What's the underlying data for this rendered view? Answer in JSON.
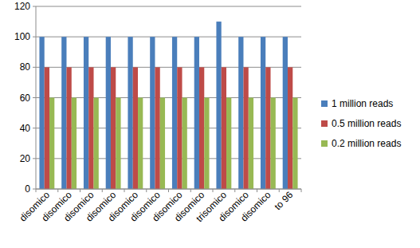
{
  "chart_data": {
    "type": "bar",
    "categories": [
      "disomico",
      "disomico",
      "disomico",
      "disomico",
      "disomico",
      "disomico",
      "disomico",
      "disomico",
      "trisomico",
      "disomico",
      "disomico",
      "to 96"
    ],
    "series": [
      {
        "name": "1 million reads",
        "color": "#4a7ebb",
        "values": [
          100,
          100,
          100,
          100,
          100,
          100,
          100,
          100,
          110,
          100,
          100,
          100
        ]
      },
      {
        "name": "0.5 million reads",
        "color": "#be4b48",
        "values": [
          80,
          80,
          80,
          80,
          80,
          80,
          80,
          80,
          80,
          80,
          80,
          80
        ]
      },
      {
        "name": "0.2 million reads",
        "color": "#98b954",
        "values": [
          60,
          60,
          60,
          60,
          60,
          60,
          60,
          60,
          60,
          60,
          60,
          60
        ]
      }
    ],
    "ylim": [
      0,
      120
    ],
    "yticks": [
      0,
      20,
      40,
      60,
      80,
      100,
      120
    ],
    "grid": true,
    "legend": "right"
  }
}
